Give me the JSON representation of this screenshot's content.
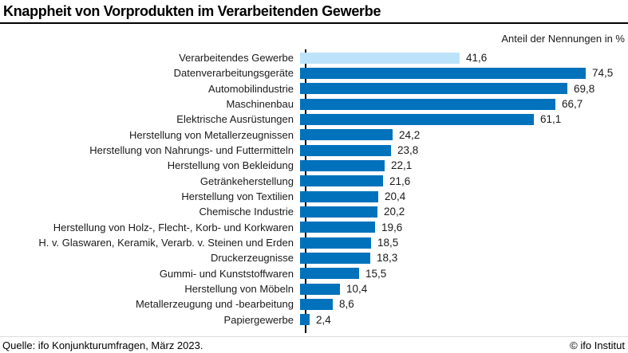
{
  "header": {
    "title": "Knappheit von Vorprodukten im Verarbeitenden Gewerbe",
    "subtitle": "Anteil der Nennungen in %"
  },
  "footer": {
    "source": "Quelle: ifo Konjunkturumfragen, März 2023.",
    "copyright": "© ifo Institut"
  },
  "chart_data": {
    "type": "bar",
    "orientation": "horizontal",
    "title": "Knappheit von Vorprodukten im Verarbeitenden Gewerbe",
    "xlabel": "Anteil der Nennungen in %",
    "xlim": [
      0,
      84
    ],
    "grid": false,
    "legend": "none",
    "categories": [
      "Verarbeitendes Gewerbe",
      "Datenverarbeitungsgeräte",
      "Automobilindustrie",
      "Maschinenbau",
      "Elektrische Ausrüstungen",
      "Herstellung von Metallerzeugnissen",
      "Herstellung von Nahrungs- und Futtermitteln",
      "Herstellung von Bekleidung",
      "Getränkeherstellung",
      "Herstellung von Textilien",
      "Chemische Industrie",
      "Herstellung von Holz-, Flecht-, Korb- und Korkwaren",
      "H. v. Glaswaren, Keramik, Verarb. v. Steinen und Erden",
      "Druckerzeugnisse",
      "Gummi- und Kunststoffwaren",
      "Herstellung von Möbeln",
      "Metallerzeugung und -bearbeitung",
      "Papiergewerbe"
    ],
    "values": [
      41.6,
      74.5,
      69.8,
      66.7,
      61.1,
      24.2,
      23.8,
      22.1,
      21.6,
      20.4,
      20.2,
      19.6,
      18.5,
      18.3,
      15.5,
      10.4,
      8.6,
      2.4
    ],
    "value_labels": [
      "41,6",
      "74,5",
      "69,8",
      "66,7",
      "61,1",
      "24,2",
      "23,8",
      "22,1",
      "21,6",
      "20,4",
      "20,2",
      "19,6",
      "18,5",
      "18,3",
      "15,5",
      "10,4",
      "8,6",
      "2,4"
    ],
    "highlight_index": 0,
    "colors": {
      "bar": "#0072BC",
      "highlight_bar": "#BDE3FA",
      "axis_line": "#000000"
    }
  }
}
